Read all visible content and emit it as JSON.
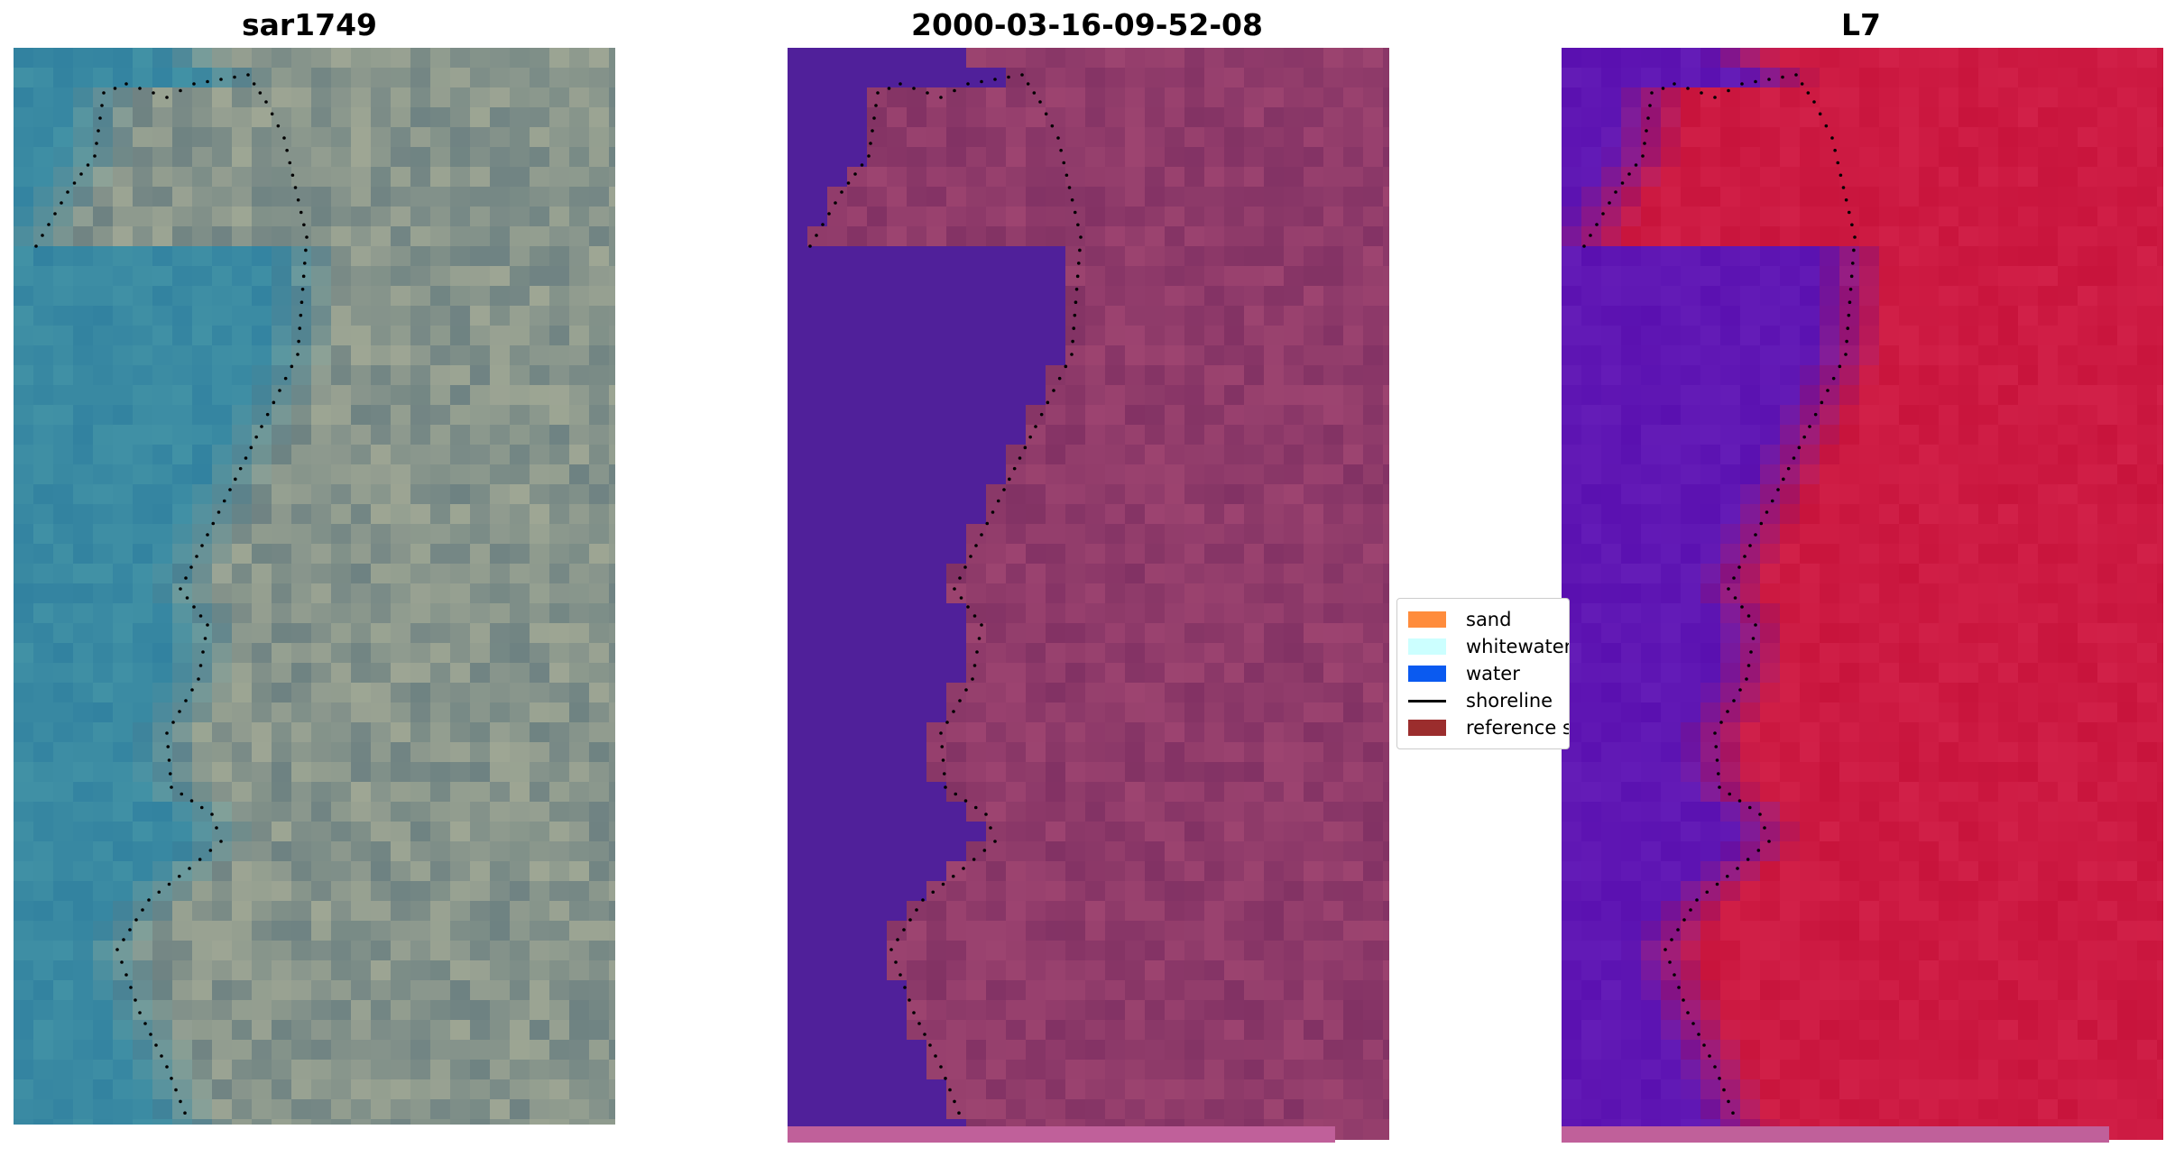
{
  "panels": [
    {
      "title": "sar1749"
    },
    {
      "title": "2000-03-16-09-52-08"
    },
    {
      "title": "L7"
    }
  ],
  "legend": {
    "items": [
      {
        "label": "sand",
        "color": "#ff8c3c",
        "kind": "patch"
      },
      {
        "label": "whitewater",
        "color": "#ccffff",
        "kind": "patch"
      },
      {
        "label": "water",
        "color": "#0a5af0",
        "kind": "patch"
      },
      {
        "label": "shoreline",
        "color": "#000000",
        "kind": "line"
      },
      {
        "label": "reference s",
        "color": "#9b2d2d",
        "kind": "patch"
      }
    ]
  },
  "colors": {
    "water_class": "#50209a",
    "land_overlay": "#8a3a6a",
    "index_water": "#5a10b0",
    "index_land": "#c8143c",
    "rgb_water": "#3a8aa0",
    "rgb_land": "#7a8a8a",
    "shoreline": "#000000",
    "bottom_strip": "#c0609a"
  }
}
